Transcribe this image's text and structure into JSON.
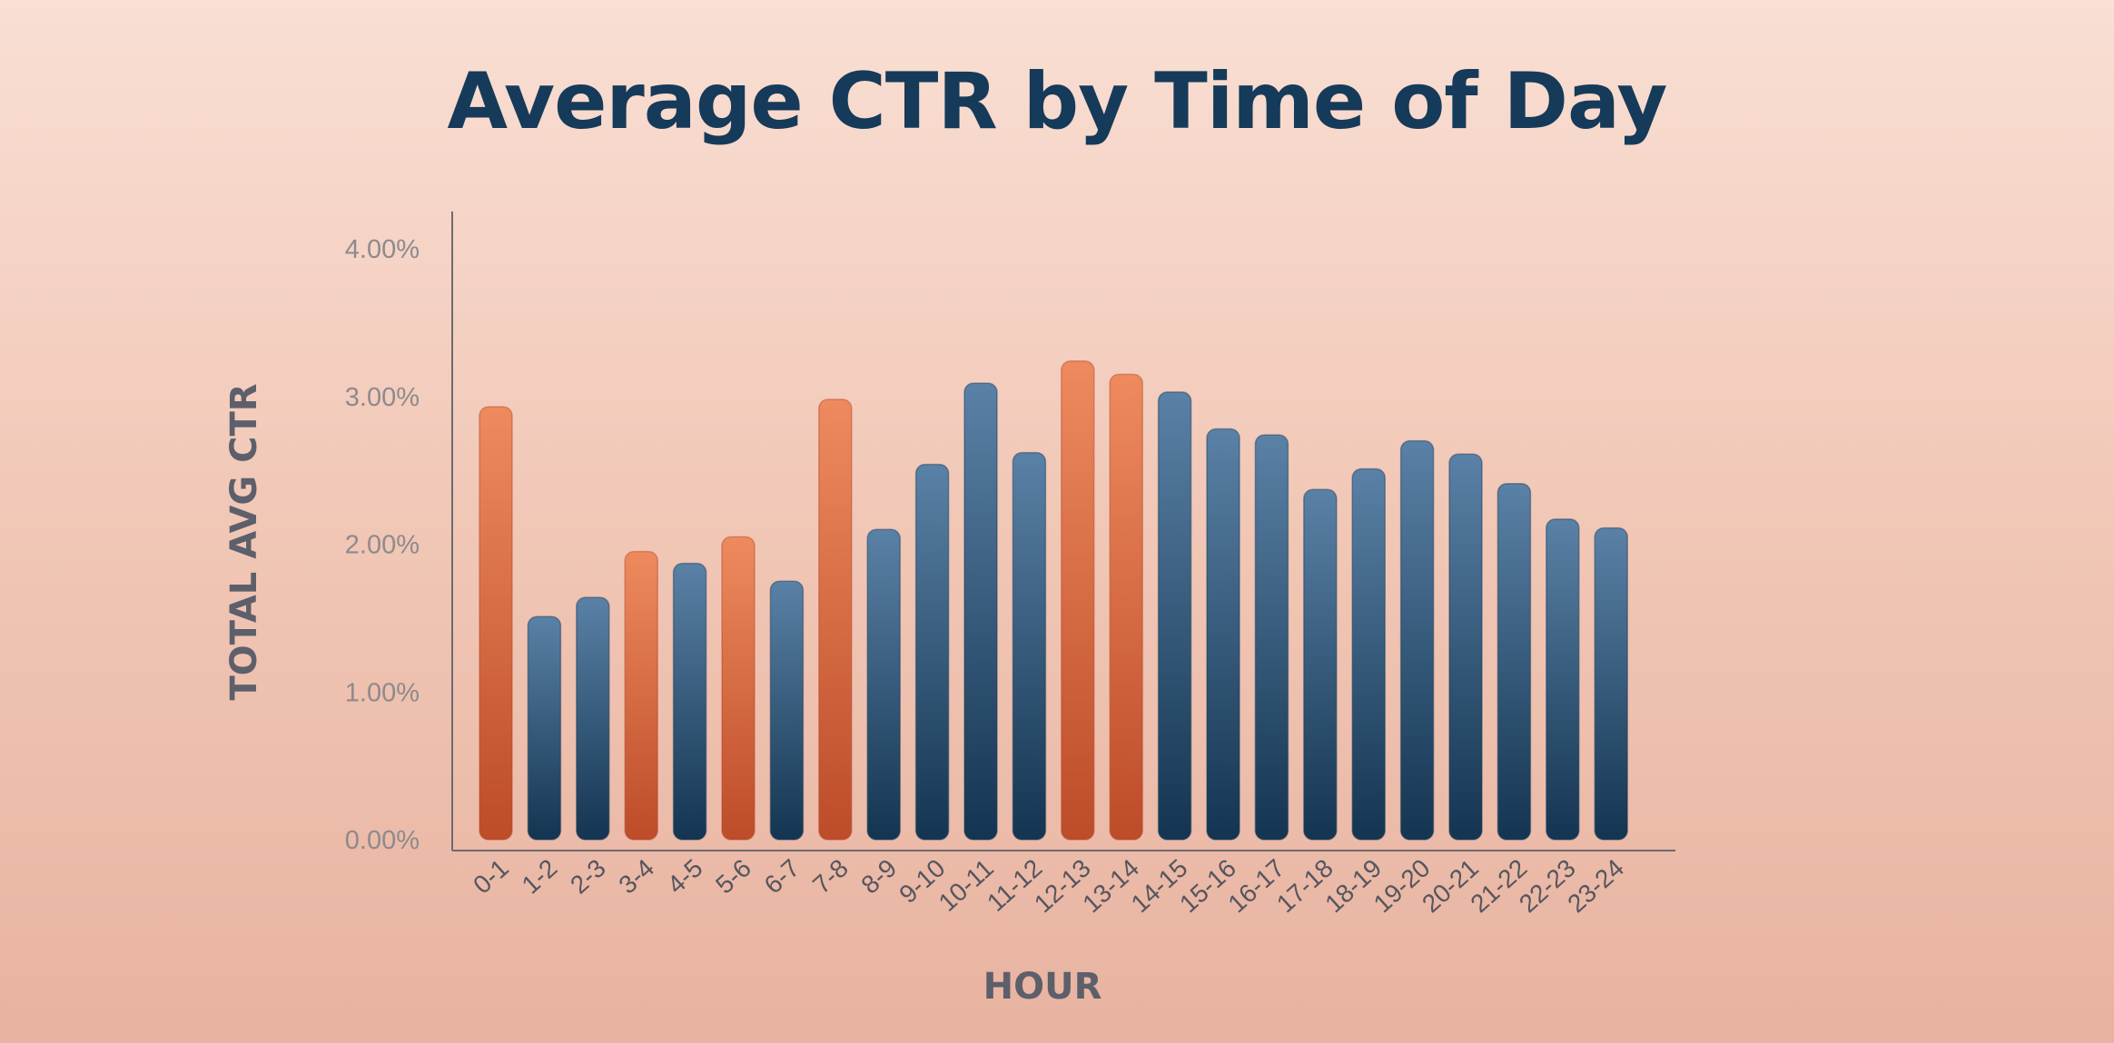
{
  "chart_data": {
    "type": "bar",
    "title": "Average CTR by Time of Day",
    "xlabel": "HOUR",
    "ylabel": "TOTAL AVG CTR",
    "ylim": [
      0,
      4.0
    ],
    "yticks": [
      "0.00%",
      "1.00%",
      "2.00%",
      "3.00%",
      "4.00%"
    ],
    "ytick_values": [
      0,
      1,
      2,
      3,
      4
    ],
    "grid": false,
    "categories": [
      "0-1",
      "1-2",
      "2-3",
      "3-4",
      "4-5",
      "5-6",
      "6-7",
      "7-8",
      "8-9",
      "9-10",
      "10-11",
      "11-12",
      "12-13",
      "13-14",
      "14-15",
      "15-16",
      "16-17",
      "17-18",
      "18-19",
      "19-20",
      "20-21",
      "21-22",
      "22-23",
      "23-24"
    ],
    "values": [
      2.93,
      1.51,
      1.64,
      1.95,
      1.87,
      2.05,
      1.75,
      2.98,
      2.1,
      2.54,
      3.09,
      2.62,
      3.24,
      3.15,
      3.03,
      2.78,
      2.74,
      2.37,
      2.51,
      2.7,
      2.61,
      2.41,
      2.17,
      2.11
    ],
    "highlighted": [
      true,
      false,
      false,
      true,
      false,
      true,
      false,
      true,
      false,
      false,
      false,
      false,
      true,
      true,
      false,
      false,
      false,
      false,
      false,
      false,
      false,
      false,
      false,
      false
    ],
    "colors": {
      "highlight_top": "#ee8a5e",
      "highlight_bottom": "#bd4c29",
      "normal_top": "#5a81a6",
      "normal_bottom": "#143551",
      "axis": "#6d6a70",
      "title": "#163a59"
    }
  }
}
